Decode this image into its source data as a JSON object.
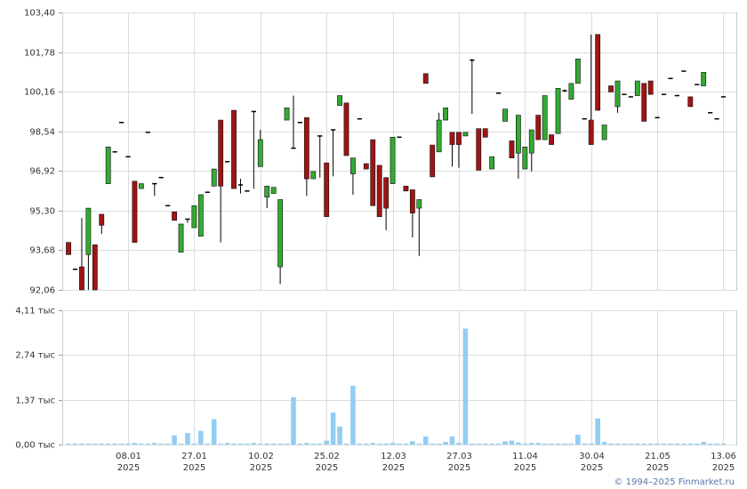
{
  "chart_data": [
    {
      "type": "candlestick",
      "up_color": "#33aa33",
      "down_color": "#a11414",
      "ylim": [
        92.06,
        103.4
      ],
      "yticks": [
        {
          "value": 92.06,
          "label": "92,06"
        },
        {
          "value": 93.68,
          "label": "93,68"
        },
        {
          "value": 95.3,
          "label": "95,30"
        },
        {
          "value": 96.92,
          "label": "96,92"
        },
        {
          "value": 98.54,
          "label": "98,54"
        },
        {
          "value": 100.16,
          "label": "100,16"
        },
        {
          "value": 101.78,
          "label": "101,78"
        },
        {
          "value": 103.4,
          "label": "103,40"
        }
      ],
      "ohlc": [
        [
          94.0,
          94.0,
          93.5,
          93.5
        ],
        [
          92.9,
          92.9,
          92.9,
          92.9
        ],
        [
          93.0,
          95.0,
          92.06,
          92.06
        ],
        [
          93.5,
          95.4,
          92.06,
          95.4
        ],
        [
          93.9,
          93.9,
          92.06,
          92.06
        ],
        [
          95.15,
          95.15,
          94.35,
          94.7
        ],
        [
          96.4,
          97.9,
          96.4,
          97.9
        ],
        [
          97.7,
          97.7,
          97.7,
          97.7
        ],
        [
          98.9,
          98.9,
          98.9,
          98.9
        ],
        [
          97.5,
          97.5,
          97.5,
          97.5
        ],
        [
          96.5,
          96.5,
          94.0,
          94.0
        ],
        [
          96.2,
          96.4,
          96.2,
          96.4
        ],
        [
          98.5,
          98.5,
          98.5,
          98.5
        ],
        [
          96.4,
          96.4,
          95.9,
          96.4
        ],
        [
          96.65,
          96.65,
          96.65,
          96.65
        ],
        [
          95.5,
          95.5,
          95.5,
          95.5
        ],
        [
          95.25,
          95.25,
          94.9,
          94.9
        ],
        [
          93.6,
          94.75,
          93.6,
          94.75
        ],
        [
          94.95,
          94.95,
          94.8,
          94.95
        ],
        [
          94.6,
          95.5,
          94.6,
          95.5
        ],
        [
          94.25,
          95.95,
          94.25,
          95.95
        ],
        [
          96.05,
          96.05,
          96.05,
          96.05
        ],
        [
          96.3,
          97.0,
          96.3,
          97.0
        ],
        [
          99.0,
          99.0,
          94.0,
          96.3
        ],
        [
          97.3,
          97.3,
          97.3,
          97.3
        ],
        [
          99.4,
          99.4,
          96.2,
          96.2
        ],
        [
          96.35,
          96.6,
          96.0,
          96.35
        ],
        [
          96.1,
          96.1,
          96.1,
          96.1
        ],
        [
          99.35,
          99.35,
          96.2,
          99.35
        ],
        [
          97.1,
          98.6,
          97.1,
          98.2
        ],
        [
          95.85,
          96.3,
          95.4,
          96.3
        ],
        [
          96.0,
          96.25,
          96.0,
          96.25
        ],
        [
          93.0,
          95.75,
          92.3,
          95.75
        ],
        [
          99.0,
          99.5,
          99.0,
          99.5
        ],
        [
          97.85,
          100.0,
          97.85,
          97.85
        ],
        [
          98.9,
          98.9,
          98.9,
          98.9
        ],
        [
          99.1,
          99.1,
          95.9,
          96.6
        ],
        [
          96.6,
          96.9,
          96.6,
          96.9
        ],
        [
          98.35,
          98.35,
          96.65,
          98.35
        ],
        [
          97.25,
          97.25,
          95.05,
          95.05
        ],
        [
          98.6,
          98.6,
          96.7,
          98.6
        ],
        [
          99.6,
          100.0,
          99.6,
          100.0
        ],
        [
          99.7,
          99.7,
          97.55,
          97.55
        ],
        [
          96.8,
          97.45,
          95.95,
          97.45
        ],
        [
          99.05,
          99.05,
          99.05,
          99.05
        ],
        [
          97.22,
          97.22,
          97.0,
          97.0
        ],
        [
          98.2,
          98.2,
          95.5,
          95.5
        ],
        [
          97.15,
          97.15,
          95.05,
          95.05
        ],
        [
          96.65,
          96.65,
          94.5,
          95.4
        ],
        [
          96.4,
          98.3,
          96.4,
          98.3
        ],
        [
          98.3,
          98.3,
          98.3,
          98.3
        ],
        [
          96.3,
          96.3,
          96.1,
          96.1
        ],
        [
          96.15,
          96.15,
          94.2,
          95.2
        ],
        [
          95.4,
          95.75,
          93.45,
          95.75
        ],
        [
          100.9,
          100.9,
          100.5,
          100.5
        ],
        [
          97.98,
          97.98,
          96.68,
          96.68
        ],
        [
          97.7,
          99.3,
          97.7,
          99.0
        ],
        [
          99.0,
          99.5,
          99.0,
          99.5
        ],
        [
          98.5,
          98.5,
          97.1,
          98.0
        ],
        [
          98.5,
          98.5,
          97.05,
          98.0
        ],
        [
          98.35,
          98.5,
          98.35,
          98.5
        ],
        [
          101.45,
          101.5,
          99.25,
          101.45
        ],
        [
          98.65,
          98.65,
          96.95,
          96.95
        ],
        [
          98.65,
          98.65,
          98.3,
          98.3
        ],
        [
          97.0,
          97.5,
          97.0,
          97.5
        ],
        [
          100.1,
          100.1,
          100.1,
          100.1
        ],
        [
          98.95,
          99.45,
          98.95,
          99.45
        ],
        [
          98.15,
          98.15,
          97.45,
          97.45
        ],
        [
          97.65,
          99.2,
          96.6,
          99.2
        ],
        [
          97.0,
          97.9,
          97.0,
          97.9
        ],
        [
          97.65,
          98.6,
          96.9,
          98.6
        ],
        [
          99.2,
          99.2,
          98.2,
          98.2
        ],
        [
          98.2,
          100.0,
          98.2,
          100.0
        ],
        [
          98.4,
          98.4,
          98.0,
          98.0
        ],
        [
          98.45,
          100.3,
          98.45,
          100.3
        ],
        [
          100.2,
          100.25,
          100.15,
          100.2
        ],
        [
          99.85,
          100.5,
          99.85,
          100.5
        ],
        [
          100.5,
          101.5,
          100.5,
          101.5
        ],
        [
          99.05,
          99.05,
          99.05,
          99.05
        ],
        [
          99.0,
          102.5,
          98.0,
          98.0
        ],
        [
          102.5,
          102.5,
          99.4,
          99.4
        ],
        [
          98.2,
          98.8,
          98.2,
          98.8
        ],
        [
          100.4,
          100.4,
          100.15,
          100.15
        ],
        [
          99.55,
          100.6,
          99.3,
          100.6
        ],
        [
          100.05,
          100.05,
          100.05,
          100.05
        ],
        [
          99.95,
          99.95,
          99.95,
          99.95
        ],
        [
          100.0,
          100.6,
          100.0,
          100.6
        ],
        [
          100.5,
          100.5,
          98.95,
          98.95
        ],
        [
          100.6,
          100.6,
          100.05,
          100.05
        ],
        [
          99.1,
          99.1,
          99.1,
          99.1
        ],
        [
          100.05,
          100.05,
          100.05,
          100.05
        ],
        [
          100.7,
          100.7,
          100.7,
          100.7
        ],
        [
          100.0,
          100.0,
          100.0,
          100.0
        ],
        [
          101.0,
          101.0,
          101.0,
          101.0
        ],
        [
          99.95,
          99.95,
          99.55,
          99.55
        ],
        [
          100.45,
          100.45,
          100.45,
          100.45
        ],
        [
          100.4,
          100.95,
          100.4,
          100.95
        ],
        [
          99.3,
          99.3,
          99.3,
          99.3
        ],
        [
          99.05,
          99.05,
          99.05,
          99.05
        ],
        [
          99.95,
          99.95,
          99.95,
          99.95
        ]
      ]
    },
    {
      "type": "bar",
      "color": "#92cdf3",
      "ylim": [
        0,
        4.11
      ],
      "yticks": [
        {
          "value": 0,
          "label": "0,00 тыс"
        },
        {
          "value": 1.37,
          "label": "1,37 тыс"
        },
        {
          "value": 2.74,
          "label": "2,74 тыс"
        },
        {
          "value": 4.11,
          "label": "4,11 тыс"
        }
      ],
      "categories": [
        null,
        null,
        null,
        null,
        null,
        null,
        null,
        null,
        null,
        "08.01 2025",
        null,
        null,
        null,
        null,
        null,
        null,
        null,
        null,
        null,
        "27.01 2025",
        null,
        null,
        null,
        null,
        null,
        null,
        null,
        null,
        null,
        "10.02 2025",
        null,
        null,
        null,
        null,
        null,
        null,
        null,
        null,
        null,
        "25.02 2025",
        null,
        null,
        null,
        null,
        null,
        null,
        null,
        null,
        null,
        "12.03 2025",
        null,
        null,
        null,
        null,
        null,
        null,
        null,
        null,
        null,
        "27.03 2025",
        null,
        null,
        null,
        null,
        null,
        null,
        null,
        null,
        null,
        "11.04 2025",
        null,
        null,
        null,
        null,
        null,
        null,
        null,
        null,
        null,
        "30.04 2025",
        null,
        null,
        null,
        null,
        null,
        null,
        null,
        null,
        null,
        "21.05 2025",
        null,
        null,
        null,
        null,
        null,
        null,
        null,
        null,
        null,
        "13.06 2025"
      ],
      "values": [
        0.03,
        0.03,
        0.03,
        0.03,
        0.03,
        0.03,
        0.03,
        0.03,
        0.03,
        0.03,
        0.05,
        0.03,
        0.03,
        0.05,
        0.03,
        0.03,
        0.28,
        0.03,
        0.35,
        0.03,
        0.42,
        0.03,
        0.78,
        0.03,
        0.05,
        0.03,
        0.03,
        0.03,
        0.05,
        0.03,
        0.03,
        0.03,
        0.03,
        0.03,
        1.45,
        0.03,
        0.05,
        0.03,
        0.03,
        0.12,
        0.98,
        0.55,
        0.03,
        1.8,
        0.03,
        0.03,
        0.05,
        0.03,
        0.03,
        0.05,
        0.03,
        0.03,
        0.1,
        0.03,
        0.25,
        0.03,
        0.03,
        0.08,
        0.25,
        0.05,
        3.55,
        0.03,
        0.03,
        0.03,
        0.03,
        0.03,
        0.1,
        0.12,
        0.06,
        0.03,
        0.05,
        0.05,
        0.03,
        0.03,
        0.03,
        0.03,
        0.03,
        0.3,
        0.03,
        0.03,
        0.8,
        0.08,
        0.03,
        0.03,
        0.03,
        0.03,
        0.03,
        0.03,
        0.03,
        0.03,
        0.03,
        0.03,
        0.03,
        0.03,
        0.03,
        0.03,
        0.08,
        0.03,
        0.03,
        0.03
      ]
    }
  ],
  "footer": "© 1994–2025 Finmarket.ru"
}
